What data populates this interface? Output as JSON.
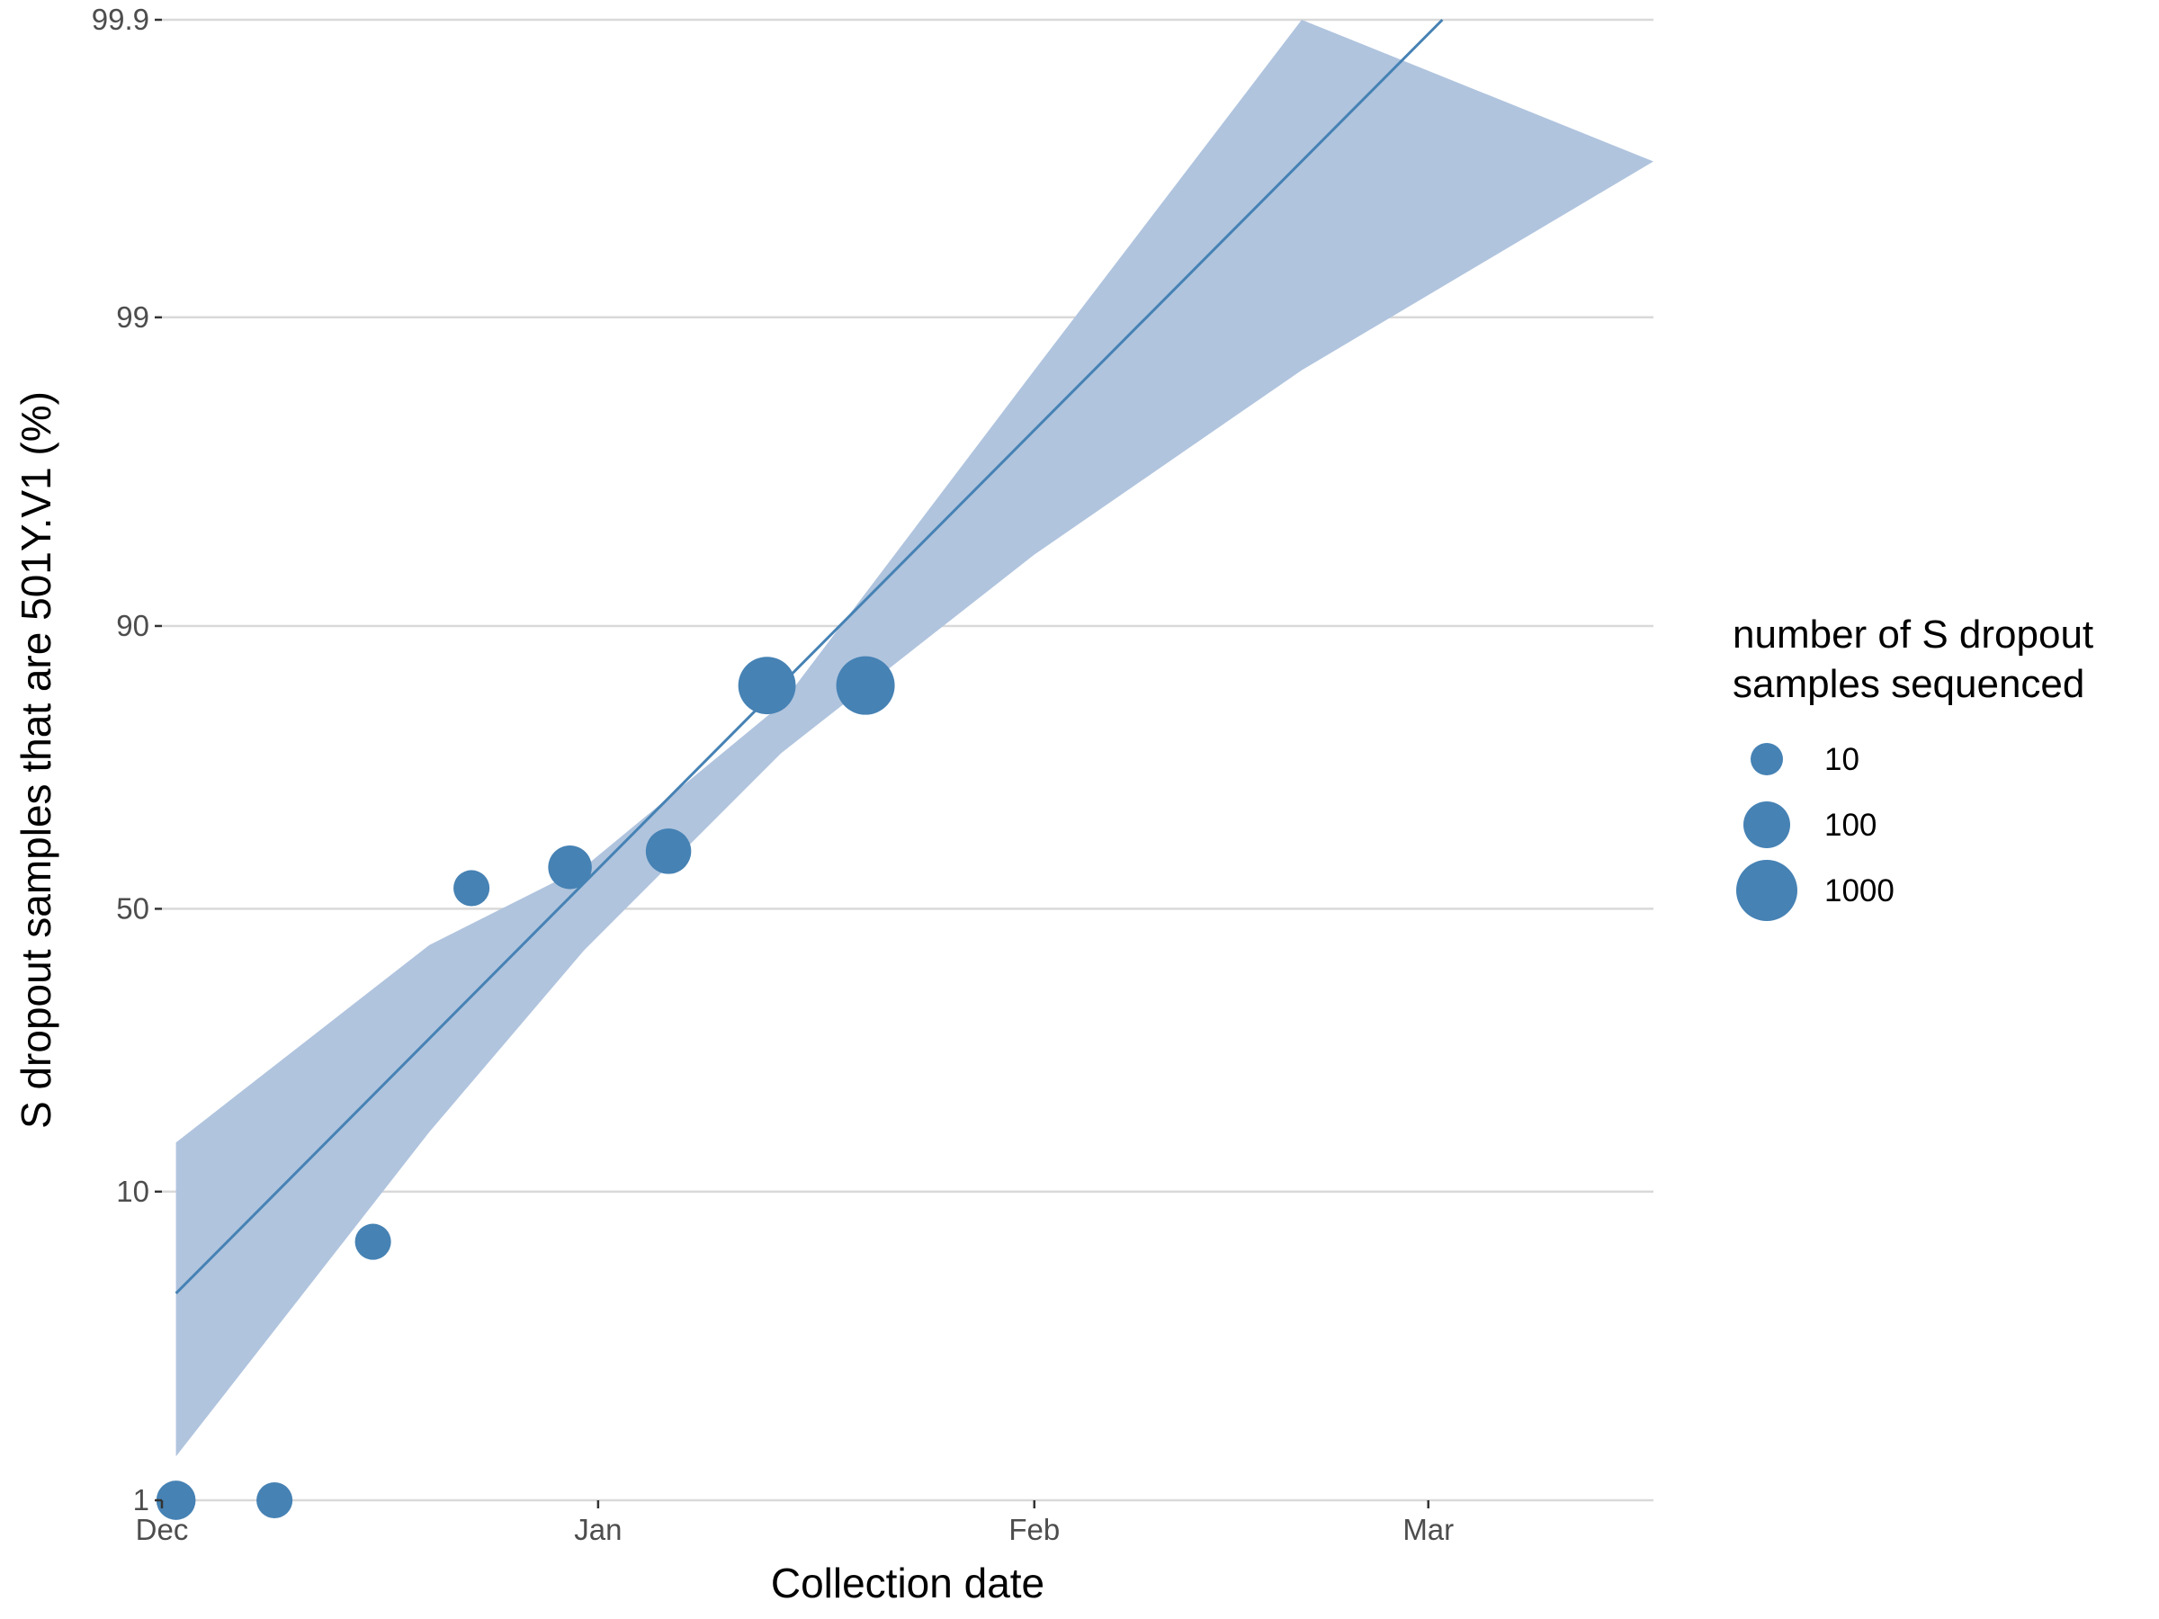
{
  "chart_data": {
    "type": "scatter",
    "xlabel": "Collection date",
    "ylabel": "S dropout samples that are 501Y.V1 (%)",
    "x_scale": "date",
    "y_scale": "logit",
    "xlim": [
      "2020-12-01",
      "2021-03-17"
    ],
    "ylim": [
      1,
      99.9
    ],
    "x_ticks": [
      {
        "label": "Dec",
        "date": "2020-12-01"
      },
      {
        "label": "Jan",
        "date": "2021-01-01"
      },
      {
        "label": "Feb",
        "date": "2021-02-01"
      },
      {
        "label": "Mar",
        "date": "2021-03-01"
      }
    ],
    "y_ticks": [
      {
        "label": "1",
        "value": 1
      },
      {
        "label": "10",
        "value": 10
      },
      {
        "label": "50",
        "value": 50
      },
      {
        "label": "90",
        "value": 90
      },
      {
        "label": "99",
        "value": 99
      },
      {
        "label": "99.9",
        "value": 99.9
      }
    ],
    "grid": {
      "horizontal_major": true,
      "vertical": false
    },
    "points": [
      {
        "date": "2020-12-02",
        "y": 1.0,
        "n": 30
      },
      {
        "date": "2020-12-09",
        "y": 1.0,
        "n": 18
      },
      {
        "date": "2020-12-16",
        "y": 7.0,
        "n": 18
      },
      {
        "date": "2020-12-23",
        "y": 54,
        "n": 18
      },
      {
        "date": "2020-12-30",
        "y": 58,
        "n": 60
      },
      {
        "date": "2021-01-06",
        "y": 61,
        "n": 80
      },
      {
        "date": "2021-01-13",
        "y": 85,
        "n": 550
      },
      {
        "date": "2021-01-20",
        "y": 85,
        "n": 650
      }
    ],
    "fit": {
      "type": "logistic",
      "line": [
        {
          "date": "2020-12-02",
          "y": 4.8
        },
        {
          "date": "2021-03-02",
          "y": 99.9
        }
      ],
      "ribbon_lower": [
        {
          "date": "2020-12-02",
          "y": 1.4
        },
        {
          "date": "2020-12-20",
          "y": 15
        },
        {
          "date": "2020-12-31",
          "y": 42
        },
        {
          "date": "2021-01-14",
          "y": 77
        },
        {
          "date": "2021-02-01",
          "y": 94
        },
        {
          "date": "2021-02-20",
          "y": 98.5
        },
        {
          "date": "2021-03-17",
          "y": 99.7
        }
      ],
      "ribbon_upper": [
        {
          "date": "2020-12-02",
          "y": 14
        },
        {
          "date": "2020-12-20",
          "y": 43
        },
        {
          "date": "2020-12-31",
          "y": 58
        },
        {
          "date": "2021-01-14",
          "y": 83
        },
        {
          "date": "2021-02-01",
          "y": 98.5
        },
        {
          "date": "2021-02-20",
          "y": 99.9
        }
      ]
    },
    "legend": {
      "title_lines": [
        "number of S dropout",
        "samples sequenced"
      ],
      "position": "right",
      "entries": [
        {
          "label": "10",
          "value": 10
        },
        {
          "label": "100",
          "value": 100
        },
        {
          "label": "1000",
          "value": 1000
        }
      ]
    },
    "colors": {
      "point": "#4682b4",
      "line": "#4682b4",
      "ribbon": "#b0c4de",
      "grid": "#d9d9d9",
      "axis_text": "#4d4d4d"
    }
  }
}
